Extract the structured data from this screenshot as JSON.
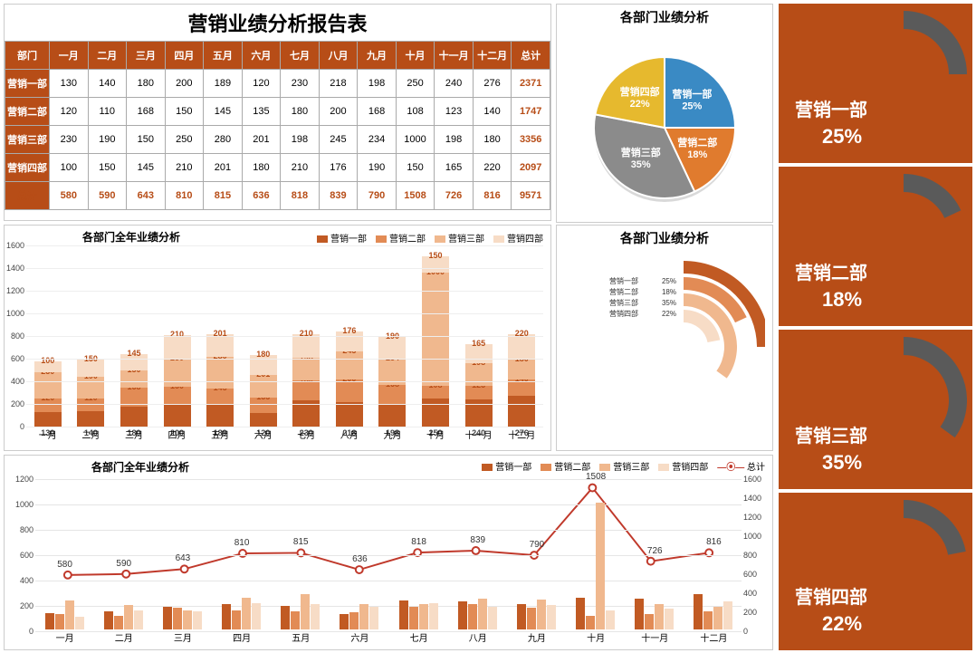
{
  "palette": {
    "accent": "#b74d17",
    "series": [
      "#c15a23",
      "#e28b55",
      "#f0b88e",
      "#f7dcc6"
    ],
    "pie": [
      "#3a8ac4",
      "#e07b2e",
      "#8b8b8b",
      "#e6b92e"
    ],
    "line": "#c0392b",
    "arc_bg": "#5a5a5a",
    "white": "#ffffff"
  },
  "main_title": "营销业绩分析报告表",
  "months": [
    "一月",
    "二月",
    "三月",
    "四月",
    "五月",
    "六月",
    "七月",
    "八月",
    "九月",
    "十月",
    "十一月",
    "十二月"
  ],
  "dept_header": "部门",
  "total_header": "总计",
  "depts": [
    "营销一部",
    "营销二部",
    "营销三部",
    "营销四部"
  ],
  "data": [
    [
      130,
      140,
      180,
      200,
      189,
      120,
      230,
      218,
      198,
      250,
      240,
      276
    ],
    [
      120,
      110,
      168,
      150,
      145,
      135,
      180,
      200,
      168,
      108,
      123,
      140
    ],
    [
      230,
      190,
      150,
      250,
      280,
      201,
      198,
      245,
      234,
      1000,
      198,
      180
    ],
    [
      100,
      150,
      145,
      210,
      201,
      180,
      210,
      176,
      190,
      150,
      165,
      220
    ]
  ],
  "row_totals": [
    2371,
    1747,
    3356,
    2097
  ],
  "col_totals": [
    580,
    590,
    643,
    810,
    815,
    636,
    818,
    839,
    790,
    1508,
    726,
    816
  ],
  "grand_total": 9571,
  "stacked": {
    "title": "各部门全年业绩分析",
    "y_max": 1600,
    "y_step": 200,
    "legend": [
      "营销一部",
      "营销二部",
      "营销三部",
      "营销四部"
    ]
  },
  "pie": {
    "title": "各部门业绩分析",
    "labels": [
      "营销一部",
      "营销二部",
      "营销三部",
      "营销四部"
    ],
    "values": [
      25,
      18,
      35,
      22
    ]
  },
  "donut": {
    "title": "各部门业绩分析",
    "labels": [
      "营销一部",
      "营销二部",
      "营销三部",
      "营销四部"
    ],
    "values": [
      25,
      18,
      35,
      22
    ]
  },
  "combo": {
    "title": "各部门全年业绩分析",
    "legend": [
      "营销一部",
      "营销二部",
      "营销三部",
      "营销四部",
      "总计"
    ],
    "left_max": 1200,
    "left_step": 200,
    "right_max": 1600,
    "right_step": 200
  },
  "cards": [
    {
      "label": "营销一部",
      "pct": "25%",
      "frac": 0.25
    },
    {
      "label": "营销二部",
      "pct": "18%",
      "frac": 0.18
    },
    {
      "label": "营销三部",
      "pct": "35%",
      "frac": 0.35
    },
    {
      "label": "营销四部",
      "pct": "22%",
      "frac": 0.22
    }
  ]
}
